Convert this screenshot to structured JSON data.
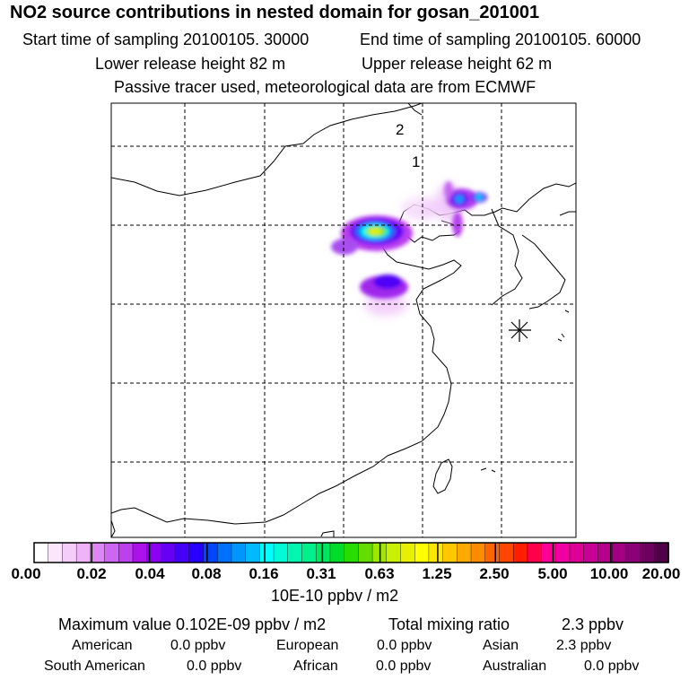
{
  "header": {
    "title": "NO2 source contributions in nested domain for gosan_201001",
    "start_time": "Start time of sampling 20100105. 30000",
    "end_time": "End time of sampling 20100105. 60000",
    "lower_height": "Lower release height   82 m",
    "upper_height": "Upper release height   62 m",
    "tracer_note": "Passive tracer used, meteorological data are from ECMWF"
  },
  "map": {
    "domain_labels": [
      "2",
      "1"
    ],
    "receptor_symbol": "star-marker-icon"
  },
  "colorbar": {
    "labels": [
      "0.00",
      "0.02",
      "0.04",
      "0.08",
      "0.16",
      "0.31",
      "0.63",
      "1.25",
      "2.50",
      "5.00",
      "10.00",
      "20.00"
    ],
    "unit": "10E-10 ppbv / m2",
    "colors": [
      "#ffffff",
      "#fbe6fd",
      "#f5cdfb",
      "#eeb3f8",
      "#de86f4",
      "#cd66f1",
      "#bd40ee",
      "#ac12ea",
      "#8a00f0",
      "#6400f4",
      "#4400f8",
      "#2600ff",
      "#0045ff",
      "#0070ff",
      "#0095ff",
      "#00b9ff",
      "#00ffff",
      "#00fad5",
      "#00f5b1",
      "#00f08c",
      "#00e664",
      "#00dc2a",
      "#28dc00",
      "#64dc00",
      "#a0e600",
      "#c8f000",
      "#e6f000",
      "#ffff00",
      "#ffe600",
      "#ffc800",
      "#ffaa00",
      "#ff8c00",
      "#ff6400",
      "#ff4600",
      "#ff1e00",
      "#ff004b",
      "#ff0096",
      "#f000a0",
      "#dc0096",
      "#c80096",
      "#b4008c",
      "#a00082",
      "#8c0078",
      "#6e005f",
      "#500046"
    ]
  },
  "summary": {
    "max_label": "Maximum value  0.102E-09 ppbv / m2",
    "total_label": "Total mixing ratio",
    "total_value": "2.3 ppbv",
    "row1": [
      {
        "name": "American",
        "value": "0.0 ppbv"
      },
      {
        "name": "European",
        "value": "0.0 ppbv"
      },
      {
        "name": "Asian",
        "value": "2.3 ppbv"
      }
    ],
    "row2": [
      {
        "name": "South American",
        "value": "0.0 ppbv"
      },
      {
        "name": "African",
        "value": "0.0 ppbv"
      },
      {
        "name": "Australian",
        "value": "0.0 ppbv"
      }
    ]
  }
}
